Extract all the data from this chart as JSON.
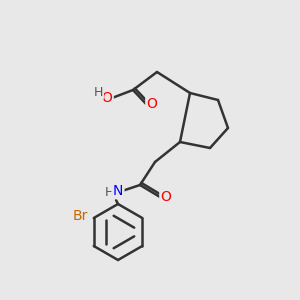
{
  "bg_color": "#e8e8e8",
  "bond_color": "#333333",
  "bond_width": 1.8,
  "atom_colors": {
    "O": "#ff0000",
    "N": "#0000ff",
    "Br": "#cc6600",
    "C": "#333333",
    "H": "#555555"
  },
  "font_size": 9,
  "figsize": [
    3.0,
    3.0
  ],
  "dpi": 100
}
